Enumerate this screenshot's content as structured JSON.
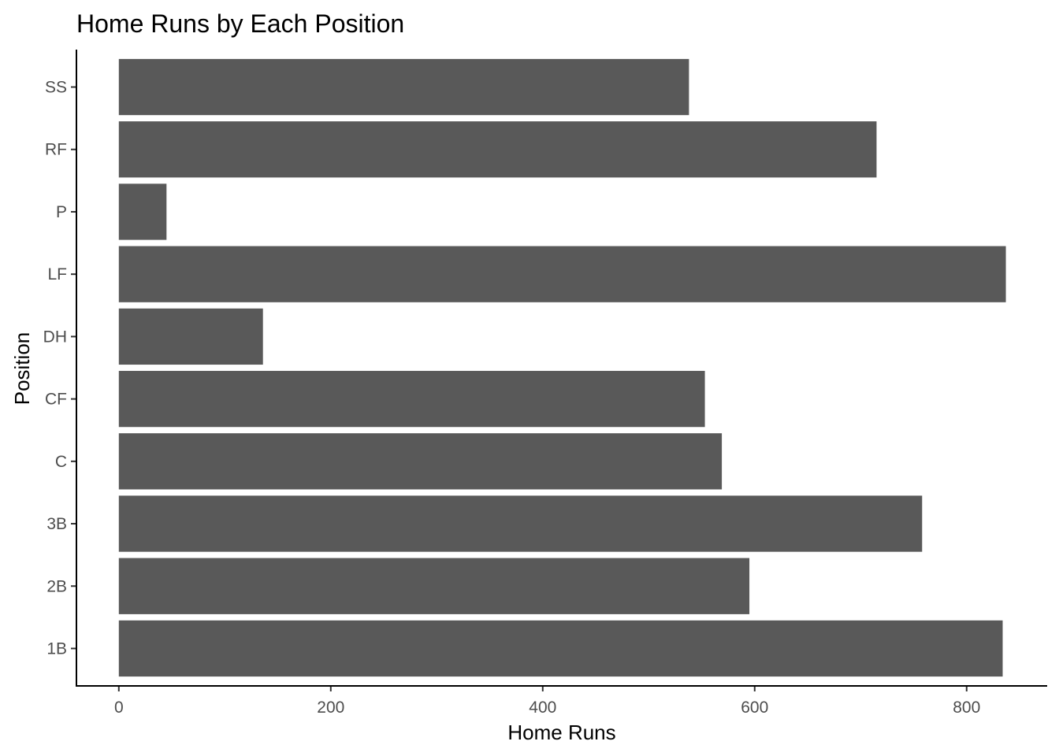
{
  "chart_data": {
    "type": "bar",
    "orientation": "horizontal",
    "title": "Home Runs by Each Position",
    "xlabel": "Home Runs",
    "ylabel": "Position",
    "categories": [
      "1B",
      "2B",
      "3B",
      "C",
      "CF",
      "DH",
      "LF",
      "P",
      "RF",
      "SS"
    ],
    "values": [
      834,
      595,
      758,
      569,
      553,
      136,
      837,
      45,
      715,
      538
    ],
    "xlim": [
      -40,
      876
    ],
    "xticks": [
      0,
      200,
      400,
      600,
      800
    ],
    "grid": false,
    "legend": "none",
    "bar_color": "#595959"
  }
}
